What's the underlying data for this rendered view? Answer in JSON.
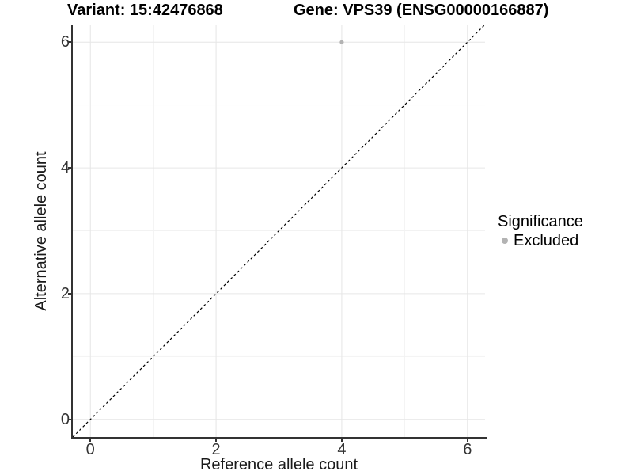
{
  "chart_data": {
    "type": "scatter",
    "title_left": "Variant: 15:42476868",
    "title_right": "Gene: VPS39 (ENSG00000166887)",
    "xlabel": "Reference allele count",
    "ylabel": "Alternative allele count",
    "xlim": [
      -0.28,
      6.28
    ],
    "ylim": [
      -0.28,
      6.28
    ],
    "x_ticks": [
      0,
      2,
      4,
      6
    ],
    "y_ticks": [
      0,
      2,
      4,
      6
    ],
    "minor_ticks": [
      1,
      3,
      5
    ],
    "grid": true,
    "series": [
      {
        "name": "Excluded",
        "marker": "circle",
        "color": "#b3b3b3",
        "points": [
          {
            "x": 4,
            "y": 6
          }
        ]
      }
    ],
    "reference_line": {
      "type": "identity",
      "style": "dashed",
      "color": "#000000",
      "dash": "3,3"
    },
    "legend": {
      "title": "Significance",
      "position": "right",
      "entries": [
        {
          "label": "Excluded",
          "color": "#b3b3b3",
          "marker": "circle"
        }
      ]
    }
  },
  "colors": {
    "grid_major": "#e6e6e6",
    "grid_minor": "#f2f2f2",
    "axis": "#333333",
    "background": "#ffffff"
  }
}
